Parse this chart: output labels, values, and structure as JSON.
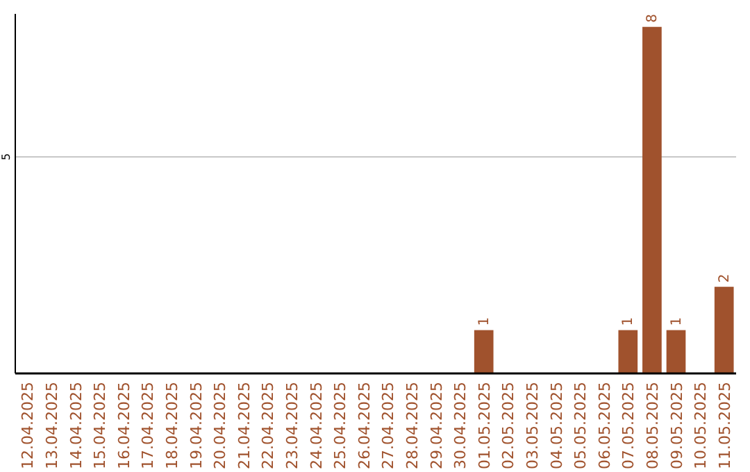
{
  "chart_data": {
    "type": "bar",
    "categories": [
      "12.04.2025",
      "13.04.2025",
      "14.04.2025",
      "15.04.2025",
      "16.04.2025",
      "17.04.2025",
      "18.04.2025",
      "19.04.2025",
      "20.04.2025",
      "21.04.2025",
      "22.04.2025",
      "23.04.2025",
      "24.04.2025",
      "25.04.2025",
      "26.04.2025",
      "27.04.2025",
      "28.04.2025",
      "29.04.2025",
      "30.04.2025",
      "01.05.2025",
      "02.05.2025",
      "03.05.2025",
      "04.05.2025",
      "05.05.2025",
      "06.05.2025",
      "07.05.2025",
      "08.05.2025",
      "09.05.2025",
      "10.05.2025",
      "11.05.2025"
    ],
    "values": [
      null,
      null,
      null,
      null,
      null,
      null,
      null,
      null,
      null,
      null,
      null,
      null,
      null,
      null,
      null,
      null,
      null,
      null,
      null,
      1,
      null,
      null,
      null,
      null,
      null,
      1,
      8,
      1,
      null,
      2
    ],
    "data_labels": true,
    "color": "#a0522d",
    "ylim": [
      0,
      8.3
    ],
    "ref_lines": [
      {
        "axis": "y",
        "value": 5,
        "label": "5",
        "color": "#c8c8c8"
      }
    ]
  }
}
